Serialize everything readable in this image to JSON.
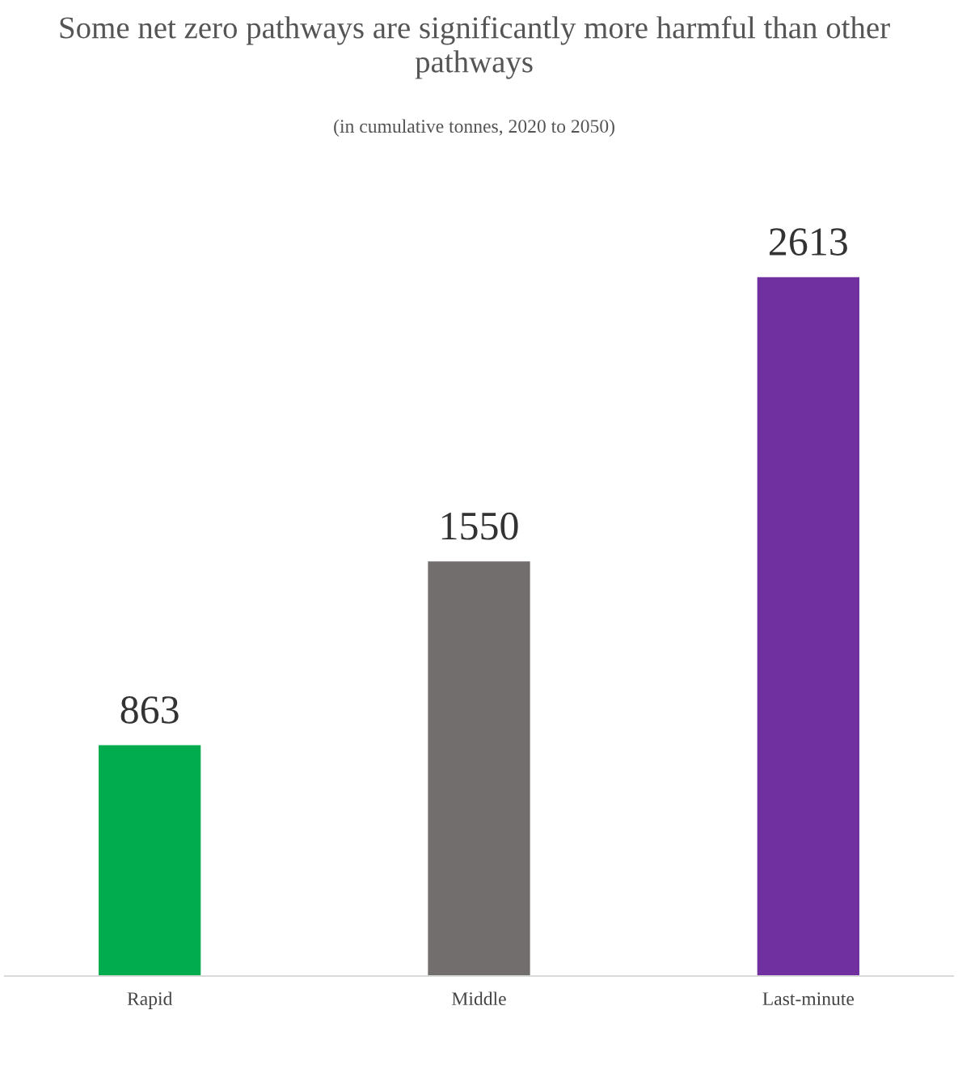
{
  "chart_data": {
    "type": "bar",
    "title": "Some net zero pathways are significantly more harmful than other pathways",
    "subtitle": "(in cumulative tonnes, 2020 to 2050)",
    "categories": [
      "Rapid",
      "Middle",
      "Last-minute"
    ],
    "values": [
      863,
      1550,
      2613
    ],
    "colors": [
      "#00ac4e",
      "#726e6d",
      "#7030a0"
    ],
    "data_labels": true,
    "grid": false,
    "legend": false
  }
}
